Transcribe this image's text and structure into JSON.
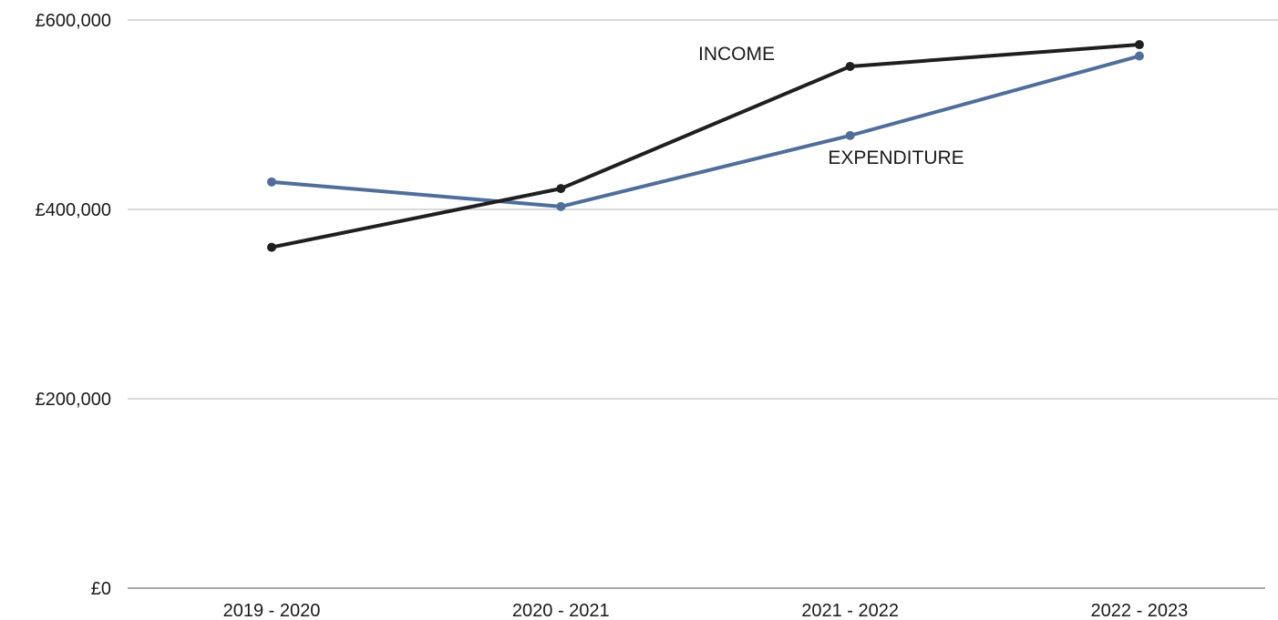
{
  "chart_data": {
    "type": "line",
    "categories": [
      "2019 - 2020",
      "2020 - 2021",
      "2021 - 2022",
      "2022 - 2023"
    ],
    "series": [
      {
        "name": "INCOME",
        "values": [
          360000,
          422000,
          551000,
          574000
        ],
        "color": "#1f1f1f"
      },
      {
        "name": "EXPENDITURE",
        "values": [
          429000,
          403000,
          478000,
          562000
        ],
        "color": "#4f6e99"
      }
    ],
    "y_ticks": [
      0,
      200000,
      400000,
      600000
    ],
    "y_tick_labels": [
      "£0",
      "£200,000",
      "£400,000",
      "£600,000"
    ],
    "ylim": [
      0,
      600000
    ],
    "grid": true,
    "legend": "none (series labels placed next to lines)"
  }
}
